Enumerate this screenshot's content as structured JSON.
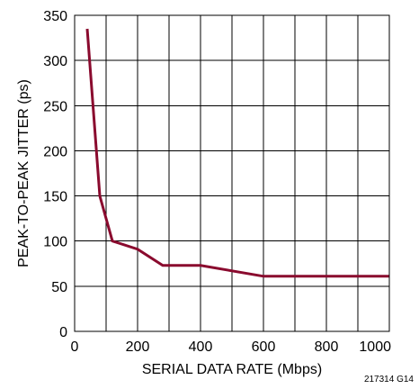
{
  "chart_data": {
    "type": "line",
    "xlabel": "SERIAL DATA RATE (Mbps)",
    "ylabel": "PEAK-TO-PEAK JITTER (ps)",
    "xlim": [
      0,
      1000
    ],
    "ylim": [
      0,
      350
    ],
    "x_ticks": [
      0,
      200,
      400,
      600,
      800,
      1000
    ],
    "y_ticks": [
      0,
      50,
      100,
      150,
      200,
      250,
      300,
      350
    ],
    "x_tick_labels": [
      "0",
      "200",
      "400",
      "600",
      "800",
      "1000"
    ],
    "y_tick_labels": [
      "0",
      "50",
      "100",
      "150",
      "200",
      "250",
      "300",
      "350"
    ],
    "x_grid_lines": [
      100,
      200,
      300,
      400,
      500,
      600,
      700,
      800,
      900
    ],
    "y_grid_lines": [
      50,
      100,
      150,
      200,
      250,
      300
    ],
    "grid": true,
    "legend": "none",
    "series": [
      {
        "color": "#8a0a2e",
        "x": [
          40,
          80,
          120,
          200,
          280,
          400,
          600,
          800,
          1000
        ],
        "y": [
          335,
          150,
          100,
          91,
          73,
          73,
          61,
          61,
          61
        ]
      }
    ],
    "footnote": "217314 G14"
  }
}
